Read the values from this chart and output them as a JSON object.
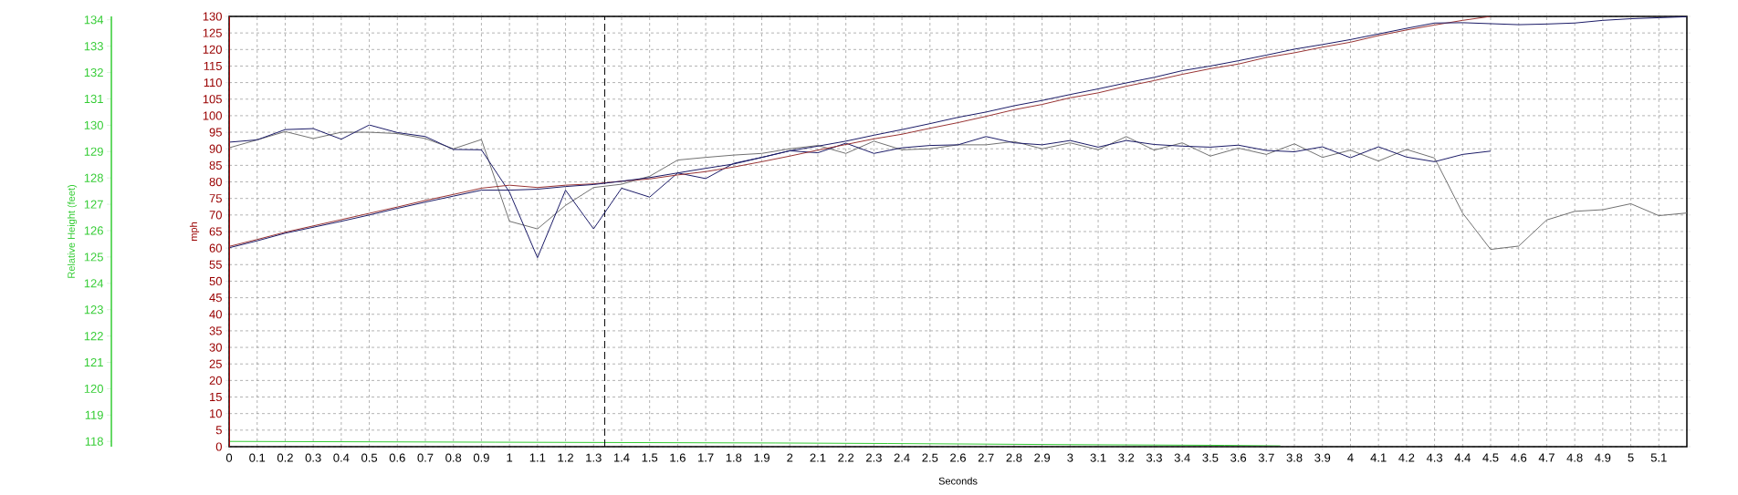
{
  "chart_data": {
    "type": "line",
    "xlabel": "Seconds",
    "ylabel": "mph",
    "y2label": "Relative Height (feet)",
    "x": [
      0,
      0.1,
      0.2,
      0.3,
      0.4,
      0.5,
      0.6,
      0.7,
      0.8,
      0.9,
      1,
      1.1,
      1.2,
      1.3,
      1.4,
      1.5,
      1.6,
      1.7,
      1.8,
      1.9,
      2,
      2.1,
      2.2,
      2.3,
      2.4,
      2.5,
      2.6,
      2.7,
      2.8,
      2.9,
      3,
      3.1,
      3.2,
      3.3,
      3.4,
      3.5,
      3.6,
      3.7,
      3.8,
      3.9,
      4,
      4.1,
      4.2,
      4.3,
      4.4,
      4.5,
      4.6,
      4.7,
      4.8,
      4.9,
      5,
      5.1,
      5.2
    ],
    "xlim": [
      0,
      5.2
    ],
    "ylim": [
      0,
      130
    ],
    "y2lim": [
      117.8,
      134.13
    ],
    "xticks": [
      0,
      0.1,
      0.2,
      0.3,
      0.4,
      0.5,
      0.6,
      0.7,
      0.8,
      0.9,
      1,
      1.1,
      1.2,
      1.3,
      1.4,
      1.5,
      1.6,
      1.7,
      1.8,
      1.9,
      2,
      2.1,
      2.2,
      2.3,
      2.4,
      2.5,
      2.6,
      2.7,
      2.8,
      2.9,
      3,
      3.1,
      3.2,
      3.3,
      3.4,
      3.5,
      3.6,
      3.7,
      3.8,
      3.9,
      4,
      4.1,
      4.2,
      4.3,
      4.4,
      4.5,
      4.6,
      4.7,
      4.8,
      4.9,
      5,
      5.1
    ],
    "yticks": [
      0,
      5,
      10,
      15,
      20,
      25,
      30,
      35,
      40,
      45,
      50,
      55,
      60,
      65,
      70,
      75,
      80,
      85,
      90,
      95,
      100,
      105,
      110,
      115,
      120,
      125,
      130
    ],
    "y2ticks": [
      118,
      119,
      120,
      121,
      122,
      123,
      124,
      125,
      126,
      127,
      128,
      129,
      130,
      131,
      132,
      133,
      134
    ],
    "grid": true,
    "ref_lines": [
      {
        "axis": "x",
        "value": 1.34,
        "color": "#000000",
        "line_style": "dashed"
      }
    ],
    "series": [
      {
        "color": "#707070",
        "values": [
          90.3,
          92.7,
          95.2,
          93.1,
          95,
          95,
          94.6,
          93.1,
          90,
          92.8,
          68.1,
          65.8,
          72.9,
          78.3,
          79.3,
          81.7,
          86.6,
          87.4,
          88.1,
          88.6,
          90,
          91,
          88.6,
          92.3,
          89.7,
          90,
          91.2,
          91.2,
          92.2,
          90,
          91.8,
          89.7,
          93.7,
          89.6,
          91.8,
          87.8,
          90.2,
          88.3,
          91.5,
          87.4,
          89.6,
          86.3,
          89.8,
          87.2,
          70.6,
          59.6,
          60.6,
          68.5,
          71.1,
          71.6,
          73.4,
          69.8,
          70.6
        ]
      },
      {
        "color": "#1a1a66",
        "values": [
          92,
          92.7,
          95.8,
          96.1,
          92.9,
          97.2,
          94.9,
          93.7,
          89.8,
          89.7,
          76.9,
          57.1,
          77.5,
          65.8,
          78.1,
          75.4,
          82.7,
          81,
          85.6,
          87.4,
          89.4,
          88.8,
          91.7,
          88.6,
          90.3,
          91,
          91.2,
          93.7,
          91.8,
          91.2,
          92.5,
          90.5,
          92.5,
          91.3,
          90.8,
          90.5,
          91.1,
          89.5,
          89.1,
          90.6,
          87.3,
          90.6,
          87.5,
          86.1,
          88.3,
          89.3,
          null,
          null,
          null,
          null,
          null,
          null,
          null
        ]
      },
      {
        "color": "#993333",
        "values": [
          60.5,
          62.6,
          64.8,
          66.7,
          68.6,
          70.5,
          72.4,
          74.4,
          76.2,
          78.1,
          79,
          78.3,
          79,
          79.4,
          80.2,
          80.9,
          82.1,
          83.1,
          84.5,
          86.1,
          87.8,
          89.6,
          91.3,
          93,
          94.4,
          96.2,
          97.9,
          99.8,
          101.8,
          103.4,
          105.4,
          106.9,
          108.9,
          110.6,
          112.5,
          114.2,
          115.6,
          117.6,
          119,
          120.7,
          122.2,
          124.2,
          125.9,
          127.4,
          128.8,
          130,
          null,
          null,
          null,
          null,
          null,
          null,
          null
        ]
      },
      {
        "color": "#1a1a66",
        "values": [
          60.1,
          62.2,
          64.5,
          66.3,
          68.1,
          70,
          72,
          73.9,
          75.7,
          77.5,
          77.5,
          77.8,
          78.6,
          79.2,
          80.2,
          81.3,
          82.7,
          84.1,
          85.4,
          87.4,
          89.4,
          90.8,
          92.3,
          94.1,
          95.8,
          97.6,
          99.5,
          101.1,
          103,
          104.6,
          106.4,
          108.1,
          109.9,
          111.6,
          113.6,
          115,
          116.6,
          118.3,
          120.1,
          121.5,
          123,
          124.7,
          126.4,
          128,
          128.1,
          127.8,
          127.5,
          127.7,
          128,
          128.8,
          129.3,
          129.6,
          129.9
        ]
      },
      {
        "color": "#33cc33",
        "axis": "y2",
        "x": [
          0,
          0.95,
          1.95,
          2.35,
          2.95,
          3.55,
          3.75
        ],
        "values": [
          118.0,
          117.97,
          117.94,
          117.92,
          117.88,
          117.85,
          117.83
        ]
      }
    ]
  }
}
